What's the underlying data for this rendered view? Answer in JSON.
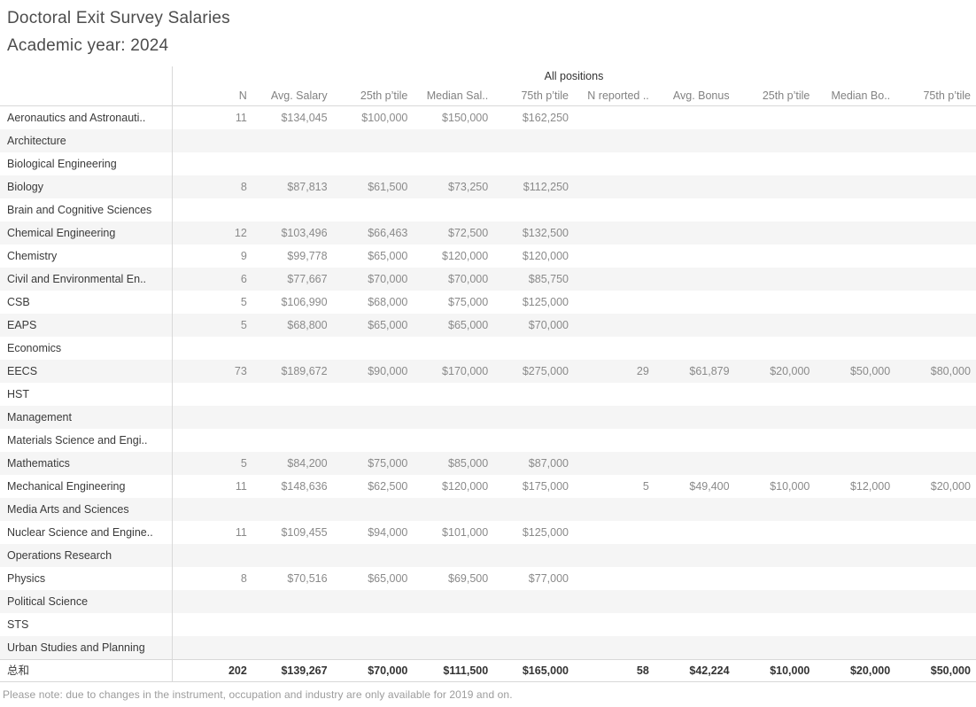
{
  "title": "Doctoral Exit Survey Salaries",
  "subtitle": "Academic year: 2024",
  "footer_note": "Please note: due to changes in the instrument, occupation and industry are only available for 2019 and on.",
  "colors": {
    "band": "#f5f5f5",
    "border": "#d8d8d8",
    "label_text": "#3a3a3a",
    "value_text": "#8a8a8a",
    "header_text": "#828282",
    "total_text": "#333333",
    "title_text": "#4c4c4c",
    "note_text": "#9c9c9c"
  },
  "chart_data": {
    "type": "table",
    "title": "Doctoral Exit Survey Salaries",
    "subtitle": "Academic year: 2024",
    "group_header": "All positions",
    "columns": [
      "N",
      "Avg. Salary",
      "25th p’tile",
      "Median Sal..",
      "75th p’tile",
      "N reported ..",
      "Avg. Bonus",
      "25th p’tile",
      "Median Bo..",
      "75th p’tile"
    ],
    "rows": [
      {
        "label": "Aeronautics and Astronauti..",
        "values": [
          "11",
          "$134,045",
          "$100,000",
          "$150,000",
          "$162,250",
          "",
          "",
          "",
          "",
          ""
        ]
      },
      {
        "label": "Architecture",
        "values": [
          "",
          "",
          "",
          "",
          "",
          "",
          "",
          "",
          "",
          ""
        ]
      },
      {
        "label": "Biological Engineering",
        "values": [
          "",
          "",
          "",
          "",
          "",
          "",
          "",
          "",
          "",
          ""
        ]
      },
      {
        "label": "Biology",
        "values": [
          "8",
          "$87,813",
          "$61,500",
          "$73,250",
          "$112,250",
          "",
          "",
          "",
          "",
          ""
        ]
      },
      {
        "label": "Brain and Cognitive Sciences",
        "values": [
          "",
          "",
          "",
          "",
          "",
          "",
          "",
          "",
          "",
          ""
        ]
      },
      {
        "label": "Chemical Engineering",
        "values": [
          "12",
          "$103,496",
          "$66,463",
          "$72,500",
          "$132,500",
          "",
          "",
          "",
          "",
          ""
        ]
      },
      {
        "label": "Chemistry",
        "values": [
          "9",
          "$99,778",
          "$65,000",
          "$120,000",
          "$120,000",
          "",
          "",
          "",
          "",
          ""
        ]
      },
      {
        "label": "Civil and Environmental En..",
        "values": [
          "6",
          "$77,667",
          "$70,000",
          "$70,000",
          "$85,750",
          "",
          "",
          "",
          "",
          ""
        ]
      },
      {
        "label": "CSB",
        "values": [
          "5",
          "$106,990",
          "$68,000",
          "$75,000",
          "$125,000",
          "",
          "",
          "",
          "",
          ""
        ]
      },
      {
        "label": "EAPS",
        "values": [
          "5",
          "$68,800",
          "$65,000",
          "$65,000",
          "$70,000",
          "",
          "",
          "",
          "",
          ""
        ]
      },
      {
        "label": "Economics",
        "values": [
          "",
          "",
          "",
          "",
          "",
          "",
          "",
          "",
          "",
          ""
        ]
      },
      {
        "label": "EECS",
        "values": [
          "73",
          "$189,672",
          "$90,000",
          "$170,000",
          "$275,000",
          "29",
          "$61,879",
          "$20,000",
          "$50,000",
          "$80,000"
        ]
      },
      {
        "label": "HST",
        "values": [
          "",
          "",
          "",
          "",
          "",
          "",
          "",
          "",
          "",
          ""
        ]
      },
      {
        "label": "Management",
        "values": [
          "",
          "",
          "",
          "",
          "",
          "",
          "",
          "",
          "",
          ""
        ]
      },
      {
        "label": "Materials Science and Engi..",
        "values": [
          "",
          "",
          "",
          "",
          "",
          "",
          "",
          "",
          "",
          ""
        ]
      },
      {
        "label": "Mathematics",
        "values": [
          "5",
          "$84,200",
          "$75,000",
          "$85,000",
          "$87,000",
          "",
          "",
          "",
          "",
          ""
        ]
      },
      {
        "label": "Mechanical Engineering",
        "values": [
          "11",
          "$148,636",
          "$62,500",
          "$120,000",
          "$175,000",
          "5",
          "$49,400",
          "$10,000",
          "$12,000",
          "$20,000"
        ]
      },
      {
        "label": "Media Arts and Sciences",
        "values": [
          "",
          "",
          "",
          "",
          "",
          "",
          "",
          "",
          "",
          ""
        ]
      },
      {
        "label": "Nuclear Science and Engine..",
        "values": [
          "11",
          "$109,455",
          "$94,000",
          "$101,000",
          "$125,000",
          "",
          "",
          "",
          "",
          ""
        ]
      },
      {
        "label": "Operations Research",
        "values": [
          "",
          "",
          "",
          "",
          "",
          "",
          "",
          "",
          "",
          ""
        ]
      },
      {
        "label": "Physics",
        "values": [
          "8",
          "$70,516",
          "$65,000",
          "$69,500",
          "$77,000",
          "",
          "",
          "",
          "",
          ""
        ]
      },
      {
        "label": "Political Science",
        "values": [
          "",
          "",
          "",
          "",
          "",
          "",
          "",
          "",
          "",
          ""
        ]
      },
      {
        "label": "STS",
        "values": [
          "",
          "",
          "",
          "",
          "",
          "",
          "",
          "",
          "",
          ""
        ]
      },
      {
        "label": "Urban Studies and Planning",
        "values": [
          "",
          "",
          "",
          "",
          "",
          "",
          "",
          "",
          "",
          ""
        ]
      }
    ],
    "total_row": {
      "label": "总和",
      "values": [
        "202",
        "$139,267",
        "$70,000",
        "$111,500",
        "$165,000",
        "58",
        "$42,224",
        "$10,000",
        "$20,000",
        "$50,000"
      ]
    }
  }
}
